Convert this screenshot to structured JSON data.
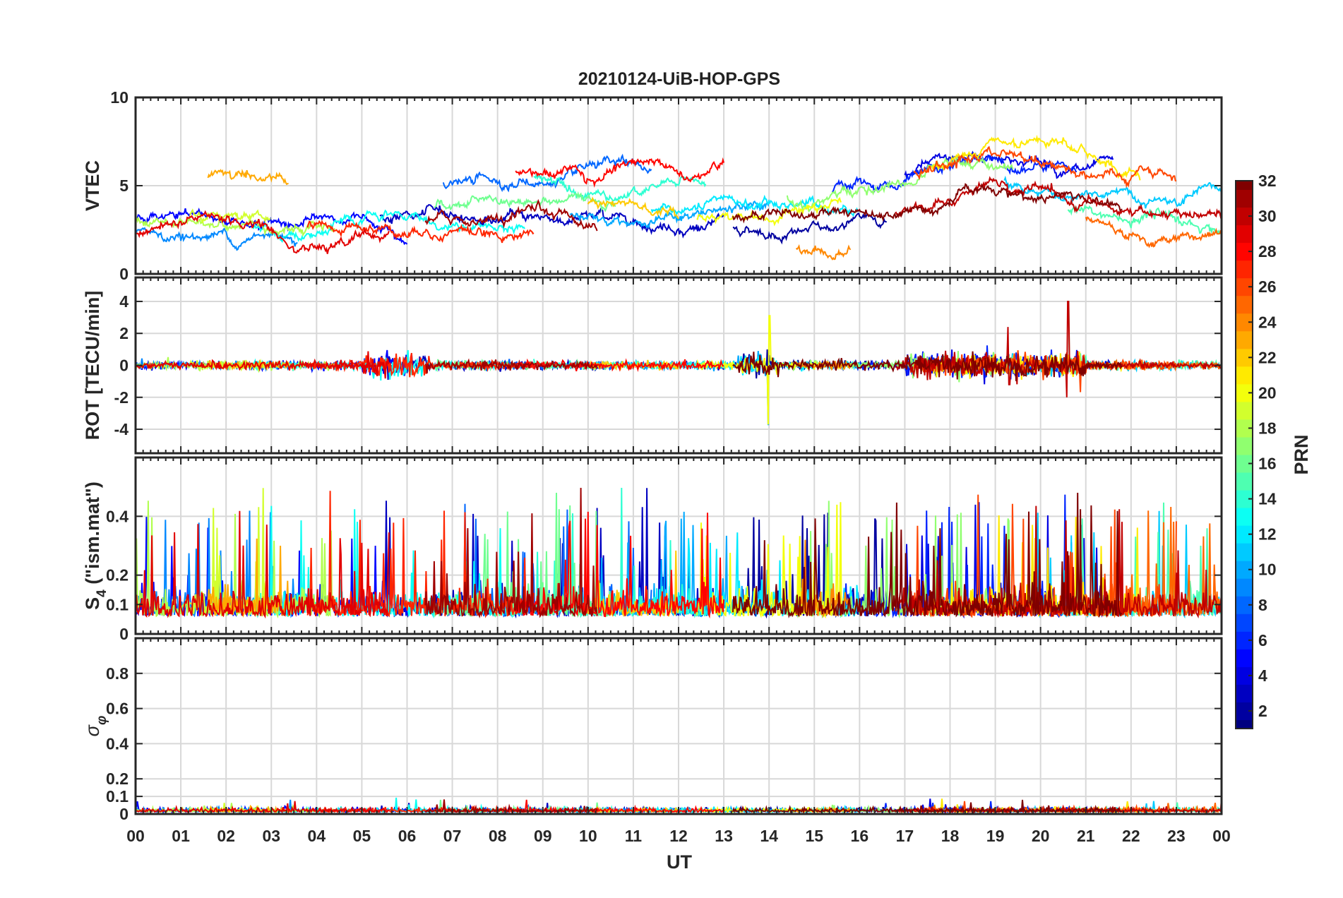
{
  "chart_data": {
    "type": "line",
    "title": "20210124-UiB-HOP-GPS",
    "xlabel": "UT",
    "x_range_hours": [
      0,
      24
    ],
    "x_tick_labels": [
      "00",
      "01",
      "02",
      "03",
      "04",
      "05",
      "06",
      "07",
      "08",
      "09",
      "10",
      "11",
      "12",
      "13",
      "14",
      "15",
      "16",
      "17",
      "18",
      "19",
      "20",
      "21",
      "22",
      "23",
      "00"
    ],
    "panels": [
      {
        "id": "vtec",
        "ylabel": "VTEC",
        "ylim": [
          0,
          10
        ],
        "y_ticks": [
          0,
          5,
          10
        ],
        "y_tick_labels": [
          "0",
          "5",
          "10"
        ],
        "grid": true,
        "description_series": "Vertical TEC per GPS satellite, typical range 1 to 8 TECU"
      },
      {
        "id": "rot",
        "ylabel": "ROT [TECU/min]",
        "ylim": [
          -5.5,
          5.5
        ],
        "y_ticks": [
          -4,
          -2,
          0,
          2,
          4
        ],
        "y_tick_labels": [
          "-4",
          "-2",
          "0",
          "2",
          "4"
        ],
        "grid": true,
        "highlights": [
          {
            "ut": 14.0,
            "min": -3.7,
            "max": 3.1
          },
          {
            "ut": 20.6,
            "min": -2.0,
            "max": 4.0
          },
          {
            "ut": 19.3,
            "min": -1.2,
            "max": 2.4
          }
        ]
      },
      {
        "id": "s4",
        "ylabel_main": "S",
        "ylabel_sub": "4",
        "ylabel_rest": " (\"ism.mat\")",
        "ylim": [
          0,
          0.6
        ],
        "y_ticks": [
          0,
          0.1,
          0.2,
          0.4
        ],
        "y_tick_labels": [
          "0",
          "0.1",
          "0.2",
          "0.4"
        ],
        "grid": true
      },
      {
        "id": "sigma_phi",
        "ylabel_main": "σ",
        "ylabel_sub": "φ",
        "ylim": [
          0,
          1
        ],
        "y_ticks": [
          0,
          0.1,
          0.2,
          0.4,
          0.6,
          0.8
        ],
        "y_tick_labels": [
          "0",
          "0.1",
          "0.2",
          "0.4",
          "0.6",
          "0.8"
        ],
        "grid": true
      }
    ],
    "colorbar": {
      "label": "PRN",
      "colormap": "jet",
      "range": [
        1,
        32
      ],
      "ticks": [
        2,
        4,
        6,
        8,
        10,
        12,
        14,
        16,
        18,
        20,
        22,
        24,
        26,
        28,
        30,
        32
      ],
      "tick_labels": [
        "2",
        "4",
        "6",
        "8",
        "10",
        "12",
        "14",
        "16",
        "18",
        "20",
        "22",
        "24",
        "26",
        "28",
        "30",
        "32"
      ]
    },
    "satellites": [
      {
        "prn": 2,
        "start": 13.2,
        "end": 16.6,
        "vtec_base": 2.6
      },
      {
        "prn": 3,
        "start": 5.4,
        "end": 13.0,
        "vtec_base": 3.2
      },
      {
        "prn": 4,
        "start": 17.0,
        "end": 21.6,
        "vtec_base": 5.0
      },
      {
        "prn": 5,
        "start": 0.0,
        "end": 6.0,
        "vtec_base": 3.0
      },
      {
        "prn": 6,
        "start": 15.4,
        "end": 20.8,
        "vtec_base": 4.6
      },
      {
        "prn": 8,
        "start": 6.8,
        "end": 11.4,
        "vtec_base": 5.2
      },
      {
        "prn": 9,
        "start": 0.0,
        "end": 3.6,
        "vtec_base": 2.2
      },
      {
        "prn": 10,
        "start": 9.6,
        "end": 14.0,
        "vtec_base": 3.4
      },
      {
        "prn": 11,
        "start": 19.2,
        "end": 24.0,
        "vtec_base": 3.6
      },
      {
        "prn": 12,
        "start": 11.4,
        "end": 16.0,
        "vtec_base": 3.6
      },
      {
        "prn": 13,
        "start": 2.6,
        "end": 8.6,
        "vtec_base": 2.6
      },
      {
        "prn": 14,
        "start": 8.8,
        "end": 12.6,
        "vtec_base": 5.4
      },
      {
        "prn": 15,
        "start": 20.6,
        "end": 24.0,
        "vtec_base": 2.4
      },
      {
        "prn": 16,
        "start": 6.6,
        "end": 10.6,
        "vtec_base": 3.8
      },
      {
        "prn": 17,
        "start": 14.4,
        "end": 19.4,
        "vtec_base": 4.4
      },
      {
        "prn": 18,
        "start": 0.0,
        "end": 4.4,
        "vtec_base": 3.0
      },
      {
        "prn": 19,
        "start": 1.2,
        "end": 3.0,
        "vtec_base": 3.4
      },
      {
        "prn": 20,
        "start": 12.4,
        "end": 15.6,
        "vtec_base": 3.2
      },
      {
        "prn": 21,
        "start": 17.6,
        "end": 22.2,
        "vtec_base": 5.2
      },
      {
        "prn": 22,
        "start": 10.0,
        "end": 12.0,
        "vtec_base": 4.0
      },
      {
        "prn": 23,
        "start": 1.6,
        "end": 3.4,
        "vtec_base": 5.4
      },
      {
        "prn": 24,
        "start": 14.6,
        "end": 15.8,
        "vtec_base": 1.4
      },
      {
        "prn": 25,
        "start": 21.0,
        "end": 24.0,
        "vtec_base": 2.2
      },
      {
        "prn": 26,
        "start": 17.2,
        "end": 23.0,
        "vtec_base": 5.0
      },
      {
        "prn": 27,
        "start": 3.8,
        "end": 8.8,
        "vtec_base": 2.8
      },
      {
        "prn": 28,
        "start": 8.4,
        "end": 13.0,
        "vtec_base": 5.8
      },
      {
        "prn": 29,
        "start": 0.0,
        "end": 5.6,
        "vtec_base": 2.2
      },
      {
        "prn": 30,
        "start": 16.8,
        "end": 24.0,
        "vtec_base": 3.0
      },
      {
        "prn": 31,
        "start": 6.4,
        "end": 10.2,
        "vtec_base": 2.8
      },
      {
        "prn": 32,
        "start": 13.2,
        "end": 21.8,
        "vtec_base": 3.4
      }
    ]
  }
}
